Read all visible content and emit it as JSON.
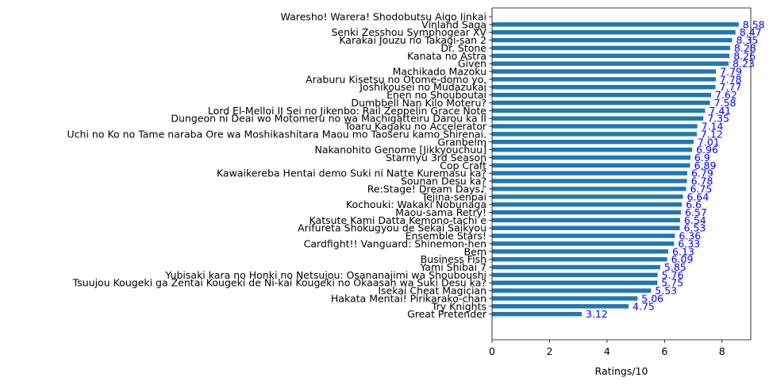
{
  "chart_data": {
    "type": "bar",
    "orientation": "horizontal",
    "title": "",
    "xlabel": "Ratings/10",
    "ylabel": "",
    "xlim": [
      0,
      9
    ],
    "xticks": [
      0,
      2,
      4,
      6,
      8
    ],
    "grid": false,
    "bar_color": "#1f77b4",
    "value_label_color": "#0000ff",
    "categories": [
      "Waresho! Warera! Shodobutsu Aigo Iinkai",
      "Vinland Saga",
      "Senki Zesshou Symphogear XV",
      "Karakai Jouzu no Takagi-san 2",
      "Dr. Stone",
      "Kanata no Astra",
      "Given",
      "Machikado Mazoku",
      "Araburu Kisetsu no Otome-domo yo.",
      "Joshikousei no Mudazukai",
      "Enen no Shouboutai",
      "Dumbbell Nan Kilo Moteru?",
      "Lord El-Melloi II Sei no Jikenbo: Rail Zeppelin Grace Note",
      "Dungeon ni Deai wo Motomeru no wa Machigatteiru Darou ka II",
      "Toaru Kagaku no Accelerator",
      "Uchi no Ko no Tame naraba  Ore wa Moshikashitara Maou mo Taoseru kamo Shirenai.",
      "Granbelm",
      "Nakanohito Genome [Jikkyouchuu]",
      "Starmyu 3rd Season",
      "Cop Craft",
      "Kawaikereba Hentai demo Suki ni Natte Kuremasu ka?",
      "Sounan Desu ka?",
      "Re:Stage! Dream Days♪",
      "Tejina-senpai",
      "Kochouki: Wakaki Nobunaga",
      "Maou-sama  Retry!",
      "Katsute Kami Datta Kemono-tachi e",
      "Arifureta Shokugyou de Sekai Saikyou",
      "Ensemble Stars!",
      "Cardfight!! Vanguard: Shinemon-hen",
      "Bem",
      "Business Fish",
      "Yami Shibai 7",
      "Yubisaki kara no Honki no Netsujou: Osananajimi wa Shouboushi",
      "Tsuujou Kougeki ga Zentai Kougeki de Ni-kai Kougeki no Okaasan wa Suki Desu ka?",
      "Isekai Cheat Magician",
      "Hakata Mentai!  Pirikarako-chan",
      "Try Knights",
      "Great Pretender"
    ],
    "values": [
      null,
      8.58,
      8.47,
      8.35,
      8.28,
      8.26,
      8.23,
      7.79,
      7.78,
      7.77,
      7.62,
      7.58,
      7.41,
      7.35,
      7.14,
      7.12,
      7.01,
      6.96,
      6.9,
      6.89,
      6.79,
      6.78,
      6.75,
      6.64,
      6.6,
      6.57,
      6.54,
      6.53,
      6.36,
      6.33,
      6.13,
      6.09,
      5.85,
      5.76,
      5.75,
      5.53,
      5.06,
      4.75,
      3.12
    ]
  }
}
